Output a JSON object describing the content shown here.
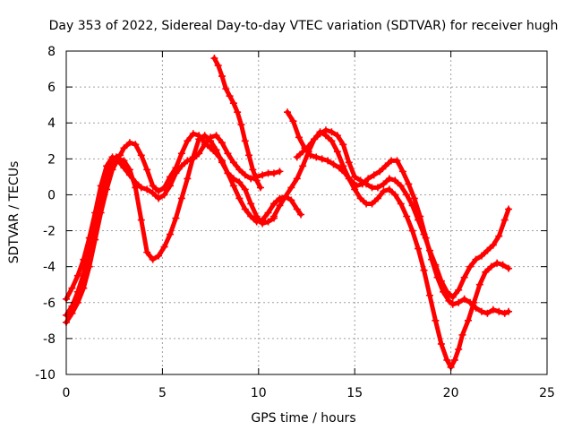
{
  "chart_data": {
    "type": "line",
    "title": "Day 353 of 2022, Sidereal Day-to-day VTEC variation (SDTVAR) for receiver hugh",
    "xlabel": "GPS time / hours",
    "ylabel": "SDTVAR / TECUs",
    "xlim": [
      0,
      25
    ],
    "ylim": [
      -10,
      8
    ],
    "xticks": [
      0,
      5,
      10,
      15,
      20,
      25
    ],
    "yticks": [
      -10,
      -8,
      -6,
      -4,
      -2,
      0,
      2,
      4,
      6,
      8
    ],
    "grid": true,
    "legend": "none",
    "marker": "plus",
    "color": "#ff0000",
    "series": [
      {
        "x": [
          0.0,
          0.3,
          0.6,
          0.9,
          1.2,
          1.5,
          1.8,
          2.0,
          2.2,
          2.4,
          2.6,
          2.8,
          3.0,
          3.3,
          3.6,
          3.9,
          4.2,
          4.5,
          4.8,
          5.1,
          5.4,
          5.7,
          6.0,
          6.3,
          6.6,
          6.9,
          7.2,
          7.5,
          7.8,
          8.1,
          8.4,
          8.7,
          9.0,
          9.3,
          9.6,
          9.9,
          10.2,
          10.5,
          10.8,
          11.1,
          11.4,
          11.7,
          12.0,
          12.2
        ],
        "y": [
          -6.7,
          -6.2,
          -5.4,
          -4.4,
          -3.0,
          -1.5,
          -0.3,
          0.6,
          1.3,
          1.8,
          2.1,
          2.2,
          2.6,
          2.9,
          2.8,
          2.2,
          1.4,
          0.5,
          0.2,
          0.4,
          1.0,
          1.5,
          2.3,
          3.0,
          3.4,
          3.3,
          2.9,
          2.6,
          2.3,
          1.9,
          1.2,
          0.5,
          -0.2,
          -0.8,
          -1.2,
          -1.5,
          -1.4,
          -1.0,
          -0.5,
          -0.2,
          -0.1,
          -0.3,
          -0.8,
          -1.1
        ]
      },
      {
        "x": [
          0.0,
          0.3,
          0.6,
          0.9,
          1.2,
          1.5,
          1.8,
          2.1,
          2.4,
          2.7,
          3.0,
          3.3,
          3.6,
          3.9,
          4.2,
          4.5,
          4.8,
          5.1,
          5.4,
          5.7,
          6.0,
          6.3,
          6.6,
          6.9,
          7.2,
          7.5,
          7.8,
          8.1,
          8.4,
          8.7,
          9.0,
          9.3,
          9.6,
          9.9,
          10.2,
          10.5,
          10.8
        ],
        "y": [
          -7.1,
          -6.6,
          -6.0,
          -5.2,
          -4.0,
          -2.5,
          -1.0,
          0.3,
          1.4,
          2.0,
          1.9,
          1.4,
          0.4,
          -1.4,
          -3.2,
          -3.6,
          -3.4,
          -2.9,
          -2.2,
          -1.3,
          -0.2,
          0.9,
          2.1,
          3.1,
          3.3,
          3.0,
          2.5,
          1.8,
          1.2,
          0.9,
          0.7,
          0.3,
          -0.5,
          -1.2,
          -1.6,
          -1.5,
          -1.3
        ]
      },
      {
        "x": [
          0.0,
          0.3,
          0.6,
          0.9,
          1.2,
          1.5,
          1.8,
          2.1,
          2.4,
          2.7,
          3.0,
          3.3,
          3.6,
          3.9,
          4.2,
          4.5,
          4.8,
          5.1,
          5.4,
          5.7,
          6.0,
          6.3,
          6.6,
          6.9,
          7.2,
          7.5,
          7.8,
          8.1,
          8.4,
          8.7,
          9.0,
          9.3,
          9.6,
          9.9,
          10.2,
          10.5,
          10.8,
          11.1
        ],
        "y": [
          -5.8,
          -5.2,
          -4.5,
          -3.6,
          -2.4,
          -1.0,
          0.5,
          1.6,
          2.1,
          1.9,
          1.5,
          1.1,
          0.7,
          0.4,
          0.3,
          0.1,
          -0.2,
          0.0,
          0.5,
          1.2,
          1.6,
          1.9,
          2.0,
          2.3,
          2.8,
          3.2,
          3.3,
          2.9,
          2.3,
          1.8,
          1.4,
          1.1,
          0.9,
          1.0,
          1.1,
          1.2,
          1.2,
          1.3
        ]
      },
      {
        "x": [
          7.7,
          7.9,
          8.1,
          8.3,
          8.5,
          8.7,
          8.9,
          9.1,
          9.3,
          9.5,
          9.7,
          9.9,
          10.1
        ],
        "y": [
          7.6,
          7.2,
          6.6,
          5.9,
          5.5,
          5.1,
          4.6,
          3.9,
          3.0,
          2.2,
          1.4,
          0.8,
          0.4
        ]
      },
      {
        "x": [
          11.5,
          11.8,
          12.1,
          12.4,
          12.7,
          13.0,
          13.3,
          13.6,
          13.9,
          14.2,
          14.5,
          14.8,
          15.1,
          15.4,
          15.7,
          16.0,
          16.3,
          16.6,
          16.9,
          17.2,
          17.5,
          17.8,
          18.1,
          18.4,
          18.7,
          19.0,
          19.3,
          19.6,
          19.9,
          20.1,
          20.4,
          20.7,
          21.0,
          21.3,
          21.6,
          21.9,
          22.2,
          22.5,
          22.8,
          23.0
        ],
        "y": [
          4.6,
          4.1,
          3.2,
          2.6,
          2.2,
          2.1,
          2.0,
          1.9,
          1.7,
          1.5,
          1.2,
          0.8,
          0.5,
          0.6,
          0.9,
          1.1,
          1.3,
          1.6,
          1.9,
          1.9,
          1.3,
          0.6,
          -0.2,
          -1.2,
          -2.4,
          -3.6,
          -4.6,
          -5.4,
          -5.9,
          -6.1,
          -6.0,
          -5.8,
          -6.0,
          -6.3,
          -6.5,
          -6.6,
          -6.4,
          -6.5,
          -6.6,
          -6.5
        ]
      },
      {
        "x": [
          10.8,
          11.1,
          11.4,
          11.7,
          12.0,
          12.3,
          12.6,
          12.9,
          13.2,
          13.5,
          13.8,
          14.1,
          14.4,
          14.7,
          15.0,
          15.3,
          15.6,
          15.9,
          16.2,
          16.5,
          16.8,
          17.1,
          17.4,
          17.7,
          18.0,
          18.3,
          18.6,
          18.9,
          19.2,
          19.5,
          19.8,
          20.0,
          20.2,
          20.4,
          20.6,
          20.9,
          21.2,
          21.5,
          21.8,
          22.1,
          22.4,
          22.7,
          23.0
        ],
        "y": [
          -1.2,
          -0.6,
          -0.1,
          0.4,
          0.9,
          1.6,
          2.4,
          3.1,
          3.5,
          3.3,
          3.0,
          2.4,
          1.6,
          0.9,
          0.3,
          -0.2,
          -0.5,
          -0.5,
          -0.2,
          0.2,
          0.3,
          0.0,
          -0.5,
          -1.2,
          -2.0,
          -3.0,
          -4.2,
          -5.6,
          -7.0,
          -8.3,
          -9.2,
          -9.6,
          -9.2,
          -8.6,
          -7.8,
          -7.0,
          -6.0,
          -5.0,
          -4.3,
          -4.0,
          -3.8,
          -3.9,
          -4.1
        ]
      },
      {
        "x": [
          12.0,
          12.3,
          12.6,
          12.9,
          13.2,
          13.5,
          13.8,
          14.1,
          14.4,
          14.7,
          15.0,
          15.3,
          15.6,
          15.9,
          16.2,
          16.5,
          16.8,
          17.1,
          17.4,
          17.7,
          18.0,
          18.3,
          18.6,
          18.9,
          19.2,
          19.5,
          19.8,
          20.1,
          20.4,
          20.7,
          21.0,
          21.3,
          21.6,
          21.9,
          22.2,
          22.5,
          22.8,
          23.0
        ],
        "y": [
          2.1,
          2.4,
          2.7,
          3.1,
          3.4,
          3.6,
          3.5,
          3.3,
          2.8,
          1.8,
          1.0,
          0.8,
          0.6,
          0.4,
          0.4,
          0.6,
          0.9,
          0.8,
          0.5,
          0.0,
          -0.6,
          -1.4,
          -2.2,
          -3.1,
          -3.9,
          -4.8,
          -5.4,
          -5.7,
          -5.3,
          -4.6,
          -4.0,
          -3.6,
          -3.4,
          -3.1,
          -2.8,
          -2.3,
          -1.4,
          -0.8
        ]
      }
    ]
  }
}
